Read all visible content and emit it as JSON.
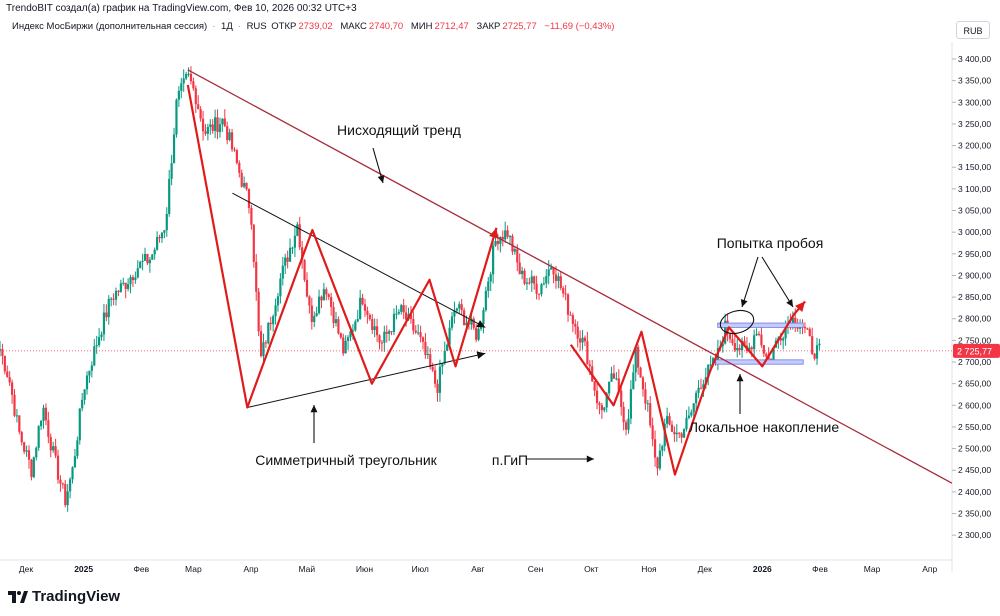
{
  "caption": "TrendoBIT создал(а) график на TradingView.com, Фев 10, 2026 00:32 UTC+3",
  "legend": {
    "name": "Индекс МосБиржи (дополнительная сессия)",
    "interval": "1Д",
    "currency_label": "RUS",
    "o_label": "ОТКР",
    "o_value": "2739,02",
    "h_label": "МАКС",
    "h_value": "2740,70",
    "l_label": "МИН",
    "l_value": "2712,47",
    "c_label": "ЗАКР",
    "c_value": "2725,77",
    "change": "−11,69 (−0,43%)"
  },
  "currency_button": "RUB",
  "footer": {
    "logo_text": "TradingView"
  },
  "colors": {
    "up": "#089981",
    "down": "#f23645",
    "trend": "#a52a3a",
    "zigzag": "#e01b1b",
    "triangle": "#111111",
    "zone": "#9fa8f0",
    "price_line": "#f23645"
  },
  "chart_data": {
    "type": "candlestick",
    "title": "Индекс МосБиржи (дополнительная сессия)",
    "y_axis": {
      "min": 2275,
      "max": 3400,
      "ticks": [
        "3 400,00",
        "3 350,00",
        "3 300,00",
        "3 250,00",
        "3 200,00",
        "3 150,00",
        "3 100,00",
        "3 050,00",
        "3 000,00",
        "2 950,00",
        "2 900,00",
        "2 850,00",
        "2 800,00",
        "2 750,00",
        "2 700,00",
        "2 650,00",
        "2 600,00",
        "2 550,00",
        "2 500,00",
        "2 450,00",
        "2 400,00",
        "2 350,00",
        "2 300,00"
      ],
      "tick_values": [
        3400,
        3350,
        3300,
        3250,
        3200,
        3150,
        3100,
        3050,
        3000,
        2950,
        2900,
        2850,
        2800,
        2750,
        2700,
        2650,
        2600,
        2550,
        2500,
        2450,
        2400,
        2350,
        2300
      ]
    },
    "x_axis": {
      "labels": [
        "Дек",
        "2025",
        "Фев",
        "Мар",
        "Апр",
        "Май",
        "Июн",
        "Июл",
        "Авг",
        "Сен",
        "Окт",
        "Ноя",
        "Дек",
        "2026",
        "Фев",
        "Мар",
        "Апр"
      ],
      "label_days": [
        -31,
        0,
        31,
        59,
        90,
        120,
        151,
        181,
        212,
        243,
        273,
        304,
        334,
        365,
        396,
        424,
        455
      ],
      "domain_days": [
        -45,
        467
      ]
    },
    "last_price": {
      "value": 2725.77,
      "label": "2 725,77"
    },
    "path_points": [
      [
        -45,
        2730
      ],
      [
        -40,
        2660
      ],
      [
        -35,
        2540
      ],
      [
        -28,
        2450
      ],
      [
        -22,
        2600
      ],
      [
        -16,
        2480
      ],
      [
        -10,
        2380
      ],
      [
        -6,
        2450
      ],
      [
        0,
        2640
      ],
      [
        8,
        2760
      ],
      [
        15,
        2850
      ],
      [
        22,
        2880
      ],
      [
        29,
        2920
      ],
      [
        36,
        2940
      ],
      [
        44,
        3020
      ],
      [
        50,
        3300
      ],
      [
        56,
        3360
      ],
      [
        60,
        3320
      ],
      [
        65,
        3230
      ],
      [
        75,
        3260
      ],
      [
        90,
        3050
      ],
      [
        95,
        2700
      ],
      [
        105,
        2880
      ],
      [
        115,
        3020
      ],
      [
        122,
        2800
      ],
      [
        130,
        2880
      ],
      [
        140,
        2720
      ],
      [
        150,
        2850
      ],
      [
        160,
        2740
      ],
      [
        170,
        2820
      ],
      [
        180,
        2760
      ],
      [
        190,
        2640
      ],
      [
        200,
        2830
      ],
      [
        212,
        2760
      ],
      [
        217,
        2880
      ],
      [
        222,
        2990
      ],
      [
        228,
        3000
      ],
      [
        235,
        2900
      ],
      [
        245,
        2870
      ],
      [
        252,
        2930
      ],
      [
        260,
        2830
      ],
      [
        270,
        2730
      ],
      [
        278,
        2580
      ],
      [
        285,
        2670
      ],
      [
        292,
        2550
      ],
      [
        297,
        2720
      ],
      [
        303,
        2600
      ],
      [
        308,
        2450
      ],
      [
        313,
        2560
      ],
      [
        320,
        2530
      ],
      [
        326,
        2570
      ],
      [
        331,
        2650
      ],
      [
        340,
        2700
      ],
      [
        345,
        2780
      ],
      [
        351,
        2740
      ],
      [
        357,
        2720
      ],
      [
        362,
        2780
      ],
      [
        368,
        2700
      ],
      [
        374,
        2760
      ],
      [
        380,
        2800
      ],
      [
        386,
        2790
      ],
      [
        392,
        2730
      ],
      [
        397,
        2720
      ]
    ],
    "trend_line": {
      "label": "Нисходящий тренд",
      "from": [
        56,
        3375
      ],
      "to": [
        467,
        2420
      ]
    },
    "triangle": {
      "label": "Симметричный треугольник",
      "upper": {
        "from": [
          80,
          3090
        ],
        "to": [
          216,
          2780
        ]
      },
      "lower": {
        "from": [
          88,
          2595
        ],
        "to": [
          216,
          2720
        ]
      }
    },
    "zigzag": [
      [
        56,
        3340
      ],
      [
        88,
        2595
      ],
      [
        123,
        3005
      ],
      [
        155,
        2650
      ],
      [
        186,
        2890
      ],
      [
        200,
        2690
      ],
      [
        222,
        3010
      ]
    ],
    "hns_label": "п.ГиП",
    "hns_zigzag": [
      [
        262,
        2740
      ],
      [
        285,
        2600
      ],
      [
        300,
        2770
      ],
      [
        318,
        2440
      ],
      [
        337,
        2680
      ],
      [
        347,
        2780
      ],
      [
        365,
        2690
      ],
      [
        382,
        2810
      ],
      [
        388,
        2840
      ]
    ],
    "zone": {
      "label": "Локальное накопление",
      "top": 2790,
      "mid_top": 2780,
      "mid_bottom": 2705,
      "bottom": 2695,
      "from_day": 341,
      "to_day": 387
    },
    "breakout_label": "Попытка пробоя"
  }
}
